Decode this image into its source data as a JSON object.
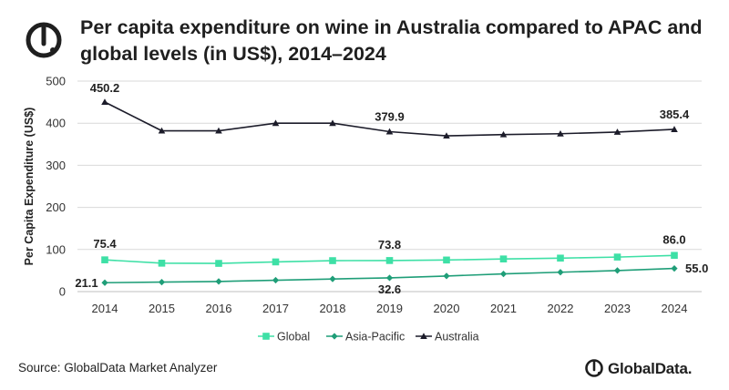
{
  "header": {
    "title": "Per capita expenditure on wine in Australia compared to APAC and global levels (in US$), 2014–2024"
  },
  "footer": {
    "source": "Source: GlobalData Market Analyzer",
    "brand": "GlobalData."
  },
  "colors": {
    "global": "#3ee0a6",
    "asia_pacific": "#1f9e78",
    "australia": "#1c1c2a",
    "grid": "#d9d9d9",
    "logo": "#1f1f1f"
  },
  "chart_data": {
    "type": "line",
    "title": "Per capita expenditure on wine in Australia compared to APAC and global levels (in US$), 2014–2024",
    "xlabel": "",
    "ylabel": "Per Capita Expenditure (US$)",
    "x": [
      "2014",
      "2015",
      "2016",
      "2017",
      "2018",
      "2019",
      "2020",
      "2021",
      "2022",
      "2023",
      "2024"
    ],
    "ylim": [
      0,
      500
    ],
    "yticks": [
      "0",
      "100",
      "200",
      "300",
      "400",
      "500"
    ],
    "grid": "horizontal",
    "legend": "bottom",
    "series": [
      {
        "name": "Global",
        "marker": "square",
        "values": [
          75.4,
          67.5,
          67.0,
          70.5,
          73.5,
          73.8,
          75.0,
          77.5,
          79.5,
          82.0,
          86.0
        ]
      },
      {
        "name": "Asia-Pacific",
        "marker": "diamond",
        "values": [
          21.1,
          22.5,
          24.0,
          27.0,
          30.0,
          32.6,
          37.0,
          42.0,
          46.0,
          50.0,
          55.0
        ]
      },
      {
        "name": "Australia",
        "marker": "triangle",
        "values": [
          450.2,
          382.0,
          382.0,
          400.0,
          400.0,
          379.9,
          370.0,
          373.0,
          375.0,
          379.0,
          385.4
        ]
      }
    ],
    "annotations": [
      {
        "series": "Australia",
        "index": 0,
        "text": "450.2"
      },
      {
        "series": "Australia",
        "index": 5,
        "text": "379.9"
      },
      {
        "series": "Australia",
        "index": 10,
        "text": "385.4"
      },
      {
        "series": "Global",
        "index": 0,
        "text": "75.4"
      },
      {
        "series": "Global",
        "index": 5,
        "text": "73.8"
      },
      {
        "series": "Global",
        "index": 10,
        "text": "86.0"
      },
      {
        "series": "Asia-Pacific",
        "index": 0,
        "text": "21.1"
      },
      {
        "series": "Asia-Pacific",
        "index": 5,
        "text": "32.6"
      },
      {
        "series": "Asia-Pacific",
        "index": 10,
        "text": "55.0"
      }
    ]
  }
}
